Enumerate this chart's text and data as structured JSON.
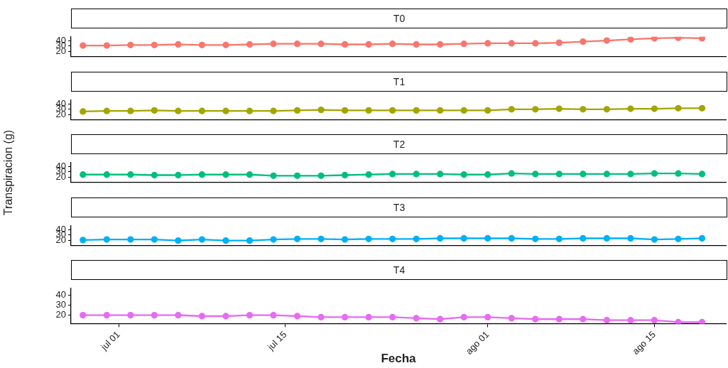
{
  "chart_data": [
    {
      "type": "line",
      "title": "T0",
      "x": [
        "--06-28",
        "--06-30",
        "--07-02",
        "--07-04",
        "--07-06",
        "--07-08",
        "--07-10",
        "--07-12",
        "--07-14",
        "--07-16",
        "--07-18",
        "--07-20",
        "--07-22",
        "--07-24",
        "--07-26",
        "--07-28",
        "--07-30",
        "--08-01",
        "--08-03",
        "--08-05",
        "--08-07",
        "--08-09",
        "--08-11",
        "--08-13",
        "--08-15",
        "--08-17",
        "--08-19"
      ],
      "series": [
        {
          "color": "#f8766d",
          "values": [
            31,
            31,
            32,
            32,
            33,
            32,
            32,
            33,
            34,
            34,
            34,
            33,
            33,
            34,
            33,
            33,
            34,
            35,
            35,
            35,
            36,
            38,
            40,
            42,
            44,
            45,
            44
          ]
        }
      ],
      "xlim": [
        "--06-27",
        "--08-21"
      ],
      "ylim": [
        11.6,
        46.7
      ],
      "yticks": [
        20,
        30,
        40
      ],
      "marker": "circle",
      "line_style": "solid",
      "tick_labels": "y",
      "grid": false,
      "legend": false
    },
    {
      "type": "line",
      "title": "T1",
      "x": [
        "--06-28",
        "--06-30",
        "--07-02",
        "--07-04",
        "--07-06",
        "--07-08",
        "--07-10",
        "--07-12",
        "--07-14",
        "--07-16",
        "--07-18",
        "--07-20",
        "--07-22",
        "--07-24",
        "--07-26",
        "--07-28",
        "--07-30",
        "--08-01",
        "--08-03",
        "--08-05",
        "--08-07",
        "--08-09",
        "--08-11",
        "--08-13",
        "--08-15",
        "--08-17",
        "--08-19"
      ],
      "series": [
        {
          "color": "#a3a500",
          "values": [
            26,
            27,
            27,
            28,
            27,
            27,
            27,
            27,
            27,
            28,
            29,
            28,
            28,
            28,
            28,
            28,
            28,
            28,
            30,
            30,
            31,
            30,
            30,
            31,
            31,
            32,
            32
          ]
        }
      ],
      "xlim": [
        "--06-27",
        "--08-21"
      ],
      "ylim": [
        11.6,
        46.7
      ],
      "yticks": [
        20,
        30,
        40
      ],
      "marker": "circle",
      "line_style": "solid",
      "tick_labels": "y",
      "grid": false,
      "legend": false
    },
    {
      "type": "line",
      "title": "T2",
      "ylabel": "Transpiracion (g)",
      "x": [
        "--06-28",
        "--06-30",
        "--07-02",
        "--07-04",
        "--07-06",
        "--07-08",
        "--07-10",
        "--07-12",
        "--07-14",
        "--07-16",
        "--07-18",
        "--07-20",
        "--07-22",
        "--07-24",
        "--07-26",
        "--07-28",
        "--07-30",
        "--08-01",
        "--08-03",
        "--08-05",
        "--08-07",
        "--08-09",
        "--08-11",
        "--08-13",
        "--08-15",
        "--08-17",
        "--08-19"
      ],
      "series": [
        {
          "color": "#00bf7d",
          "values": [
            25,
            25,
            25,
            24,
            24,
            25,
            25,
            25,
            23,
            23,
            23,
            24,
            25,
            26,
            26,
            26,
            25,
            25,
            27,
            26,
            26,
            26,
            26,
            26,
            27,
            27,
            26
          ]
        }
      ],
      "xlim": [
        "--06-27",
        "--08-21"
      ],
      "ylim": [
        11.6,
        46.7
      ],
      "yticks": [
        20,
        30,
        40
      ],
      "marker": "circle",
      "line_style": "solid",
      "tick_labels": "y",
      "grid": false,
      "legend": false
    },
    {
      "type": "line",
      "title": "T3",
      "x": [
        "--06-28",
        "--06-30",
        "--07-02",
        "--07-04",
        "--07-06",
        "--07-08",
        "--07-10",
        "--07-12",
        "--07-14",
        "--07-16",
        "--07-18",
        "--07-20",
        "--07-22",
        "--07-24",
        "--07-26",
        "--07-28",
        "--07-30",
        "--08-01",
        "--08-03",
        "--08-05",
        "--08-07",
        "--08-09",
        "--08-11",
        "--08-13",
        "--08-15",
        "--08-17",
        "--08-19"
      ],
      "series": [
        {
          "color": "#00b0f6",
          "values": [
            21,
            22,
            22,
            22,
            20,
            22,
            20,
            20,
            22,
            23,
            23,
            22,
            23,
            23,
            23,
            24,
            24,
            24,
            24,
            23,
            23,
            24,
            24,
            24,
            22,
            23,
            24
          ]
        }
      ],
      "xlim": [
        "--06-27",
        "--08-21"
      ],
      "ylim": [
        11.6,
        46.7
      ],
      "yticks": [
        20,
        30,
        40
      ],
      "marker": "circle",
      "line_style": "solid",
      "tick_labels": "y",
      "grid": false,
      "legend": false
    },
    {
      "type": "line",
      "title": "T4",
      "xlabel": "Fecha",
      "x": [
        "--06-28",
        "--06-30",
        "--07-02",
        "--07-04",
        "--07-06",
        "--07-08",
        "--07-10",
        "--07-12",
        "--07-14",
        "--07-16",
        "--07-18",
        "--07-20",
        "--07-22",
        "--07-24",
        "--07-26",
        "--07-28",
        "--07-30",
        "--08-01",
        "--08-03",
        "--08-05",
        "--08-07",
        "--08-09",
        "--08-11",
        "--08-13",
        "--08-15",
        "--08-17",
        "--08-19"
      ],
      "series": [
        {
          "color": "#e76bf3",
          "values": [
            20,
            20,
            20,
            20,
            20,
            19,
            19,
            20,
            20,
            19,
            18,
            18,
            18,
            18,
            17,
            16,
            18,
            18,
            17,
            16,
            16,
            16,
            15,
            15,
            15,
            13,
            13
          ]
        }
      ],
      "xlim": [
        "--06-27",
        "--08-21"
      ],
      "xticks": [
        {
          "value": "--07-01",
          "label": "jul 01"
        },
        {
          "value": "--07-15",
          "label": "jul 15"
        },
        {
          "value": "--08-01",
          "label": "ago 01"
        },
        {
          "value": "--08-15",
          "label": "ago 15"
        }
      ],
      "ylim": [
        11.6,
        46.7
      ],
      "yticks": [
        20,
        30,
        40
      ],
      "marker": "circle",
      "line_style": "solid",
      "grid": false,
      "legend": false
    }
  ]
}
